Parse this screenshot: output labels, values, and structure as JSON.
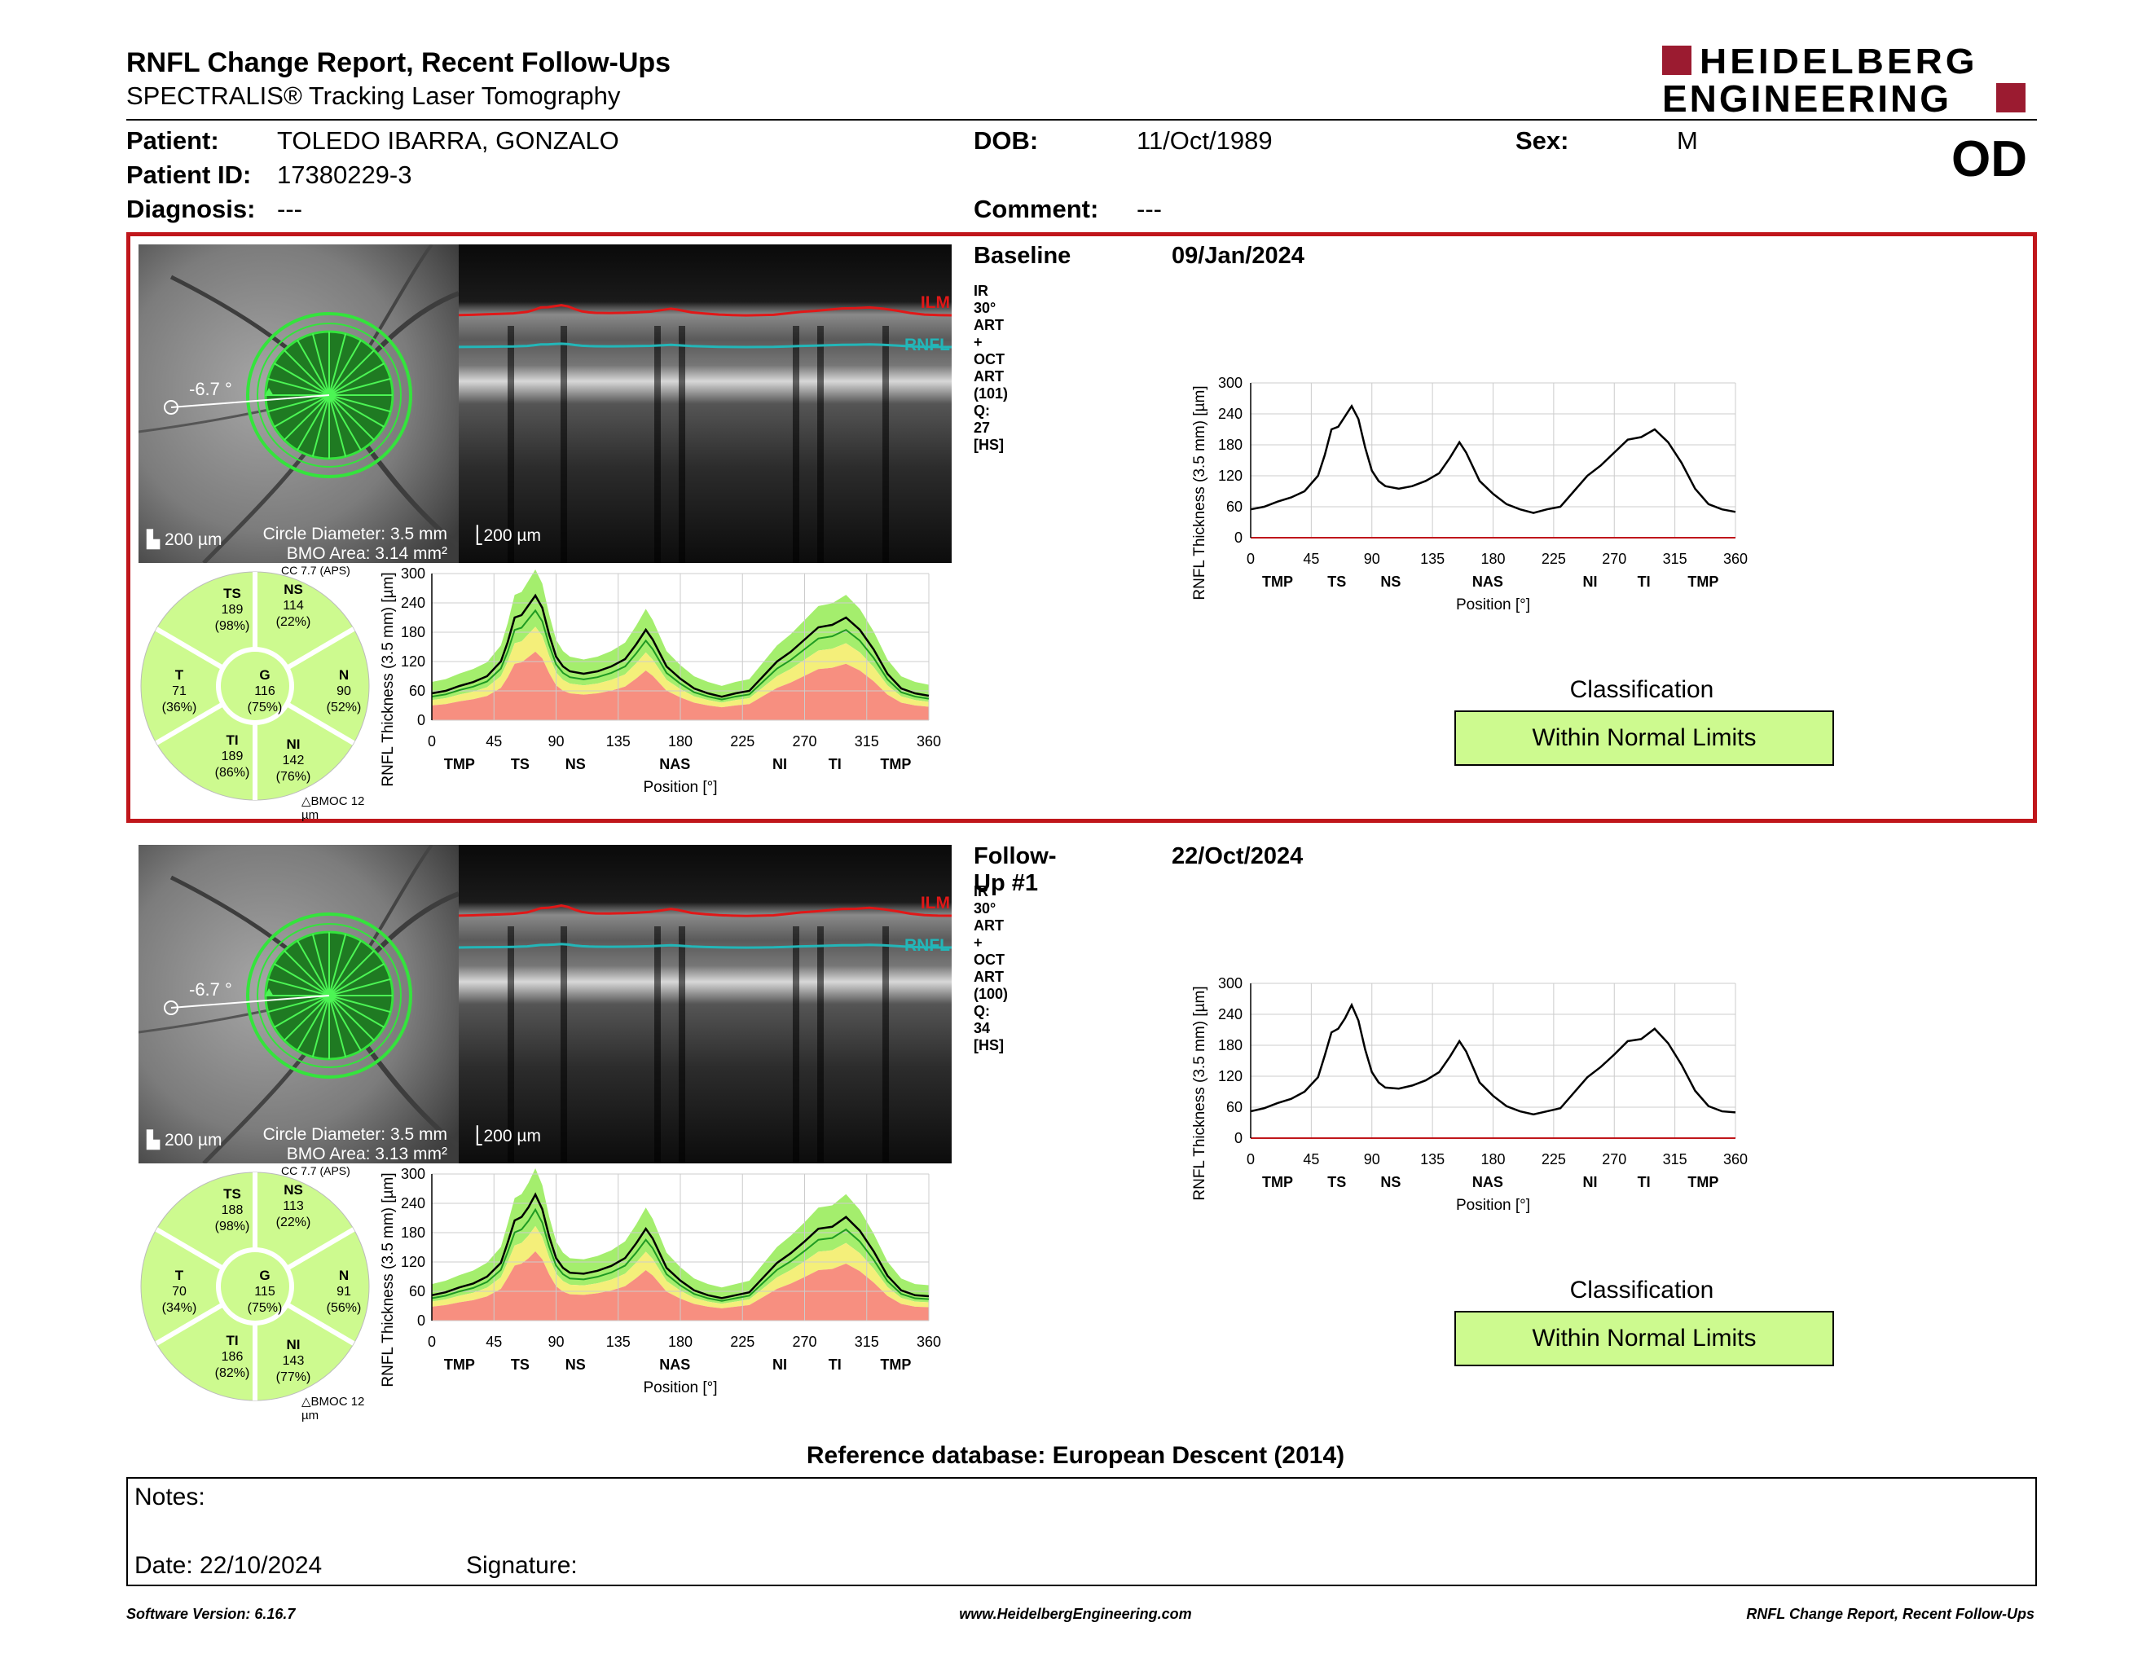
{
  "report": {
    "title": "RNFL Change Report, Recent Follow-Ups",
    "subtitle": "SPECTRALIS® Tracking Laser Tomography",
    "logo_line1": "HEIDELBERG",
    "logo_line2": "ENGINEERING",
    "eye": "OD"
  },
  "patient": {
    "patient_label": "Patient:",
    "name": "TOLEDO IBARRA, GONZALO",
    "id_label": "Patient ID:",
    "id": "17380229-3",
    "diagnosis_label": "Diagnosis:",
    "diagnosis": "---",
    "dob_label": "DOB:",
    "dob": "11/Oct/1989",
    "comment_label": "Comment:",
    "comment": "---",
    "sex_label": "Sex:",
    "sex": "M"
  },
  "exams": [
    {
      "label": "Baseline",
      "date": "09/Jan/2024",
      "scan_info": "IR 30° ART + OCT ART (101) Q: 27 [HS]",
      "angle": "-6.7 °",
      "scale_fundus": "200 µm",
      "circle_diameter": "Circle Diameter: 3.5 mm",
      "bmo_area": "BMO Area: 3.14 mm²",
      "scale_oct": "200 µm",
      "ilm": "ILM",
      "rnfl": "RNFL",
      "cc": "CC 7.7 (APS)",
      "bmoc": "BMOC 12 µm",
      "sectors": {
        "TS": {
          "label": "TS",
          "value": "189",
          "pct": "(98%)"
        },
        "NS": {
          "label": "NS",
          "value": "114",
          "pct": "(22%)"
        },
        "T": {
          "label": "T",
          "value": "71",
          "pct": "(36%)"
        },
        "G": {
          "label": "G",
          "value": "116",
          "pct": "(75%)"
        },
        "N": {
          "label": "N",
          "value": "90",
          "pct": "(52%)"
        },
        "TI": {
          "label": "TI",
          "value": "189",
          "pct": "(86%)"
        },
        "NI": {
          "label": "NI",
          "value": "142",
          "pct": "(76%)"
        }
      },
      "classification_label": "Classification",
      "classification": "Within Normal Limits"
    },
    {
      "label": "Follow-Up #1",
      "date": "22/Oct/2024",
      "scan_info": "IR 30° ART + OCT ART (100) Q: 34 [HS]",
      "angle": "-6.7 °",
      "scale_fundus": "200 µm",
      "circle_diameter": "Circle Diameter: 3.5 mm",
      "bmo_area": "BMO Area: 3.13 mm²",
      "scale_oct": "200 µm",
      "ilm": "ILM",
      "rnfl": "RNFL",
      "cc": "CC 7.7 (APS)",
      "bmoc": "BMOC 12 µm",
      "sectors": {
        "TS": {
          "label": "TS",
          "value": "188",
          "pct": "(98%)"
        },
        "NS": {
          "label": "NS",
          "value": "113",
          "pct": "(22%)"
        },
        "T": {
          "label": "T",
          "value": "70",
          "pct": "(34%)"
        },
        "G": {
          "label": "G",
          "value": "115",
          "pct": "(75%)"
        },
        "N": {
          "label": "N",
          "value": "91",
          "pct": "(56%)"
        },
        "TI": {
          "label": "TI",
          "value": "186",
          "pct": "(82%)"
        },
        "NI": {
          "label": "NI",
          "value": "143",
          "pct": "(77%)"
        }
      },
      "classification_label": "Classification",
      "classification": "Within Normal Limits"
    }
  ],
  "chart_data": [
    {
      "type": "line",
      "ylabel": "RNFL Thickness (3.5 mm) [µm]",
      "xlabel": "Position [°]",
      "xlim": [
        0,
        360
      ],
      "ylim": [
        0,
        300
      ],
      "x_ticks": [
        "0",
        "45",
        "90",
        "135",
        "180",
        "225",
        "270",
        "315",
        "360"
      ],
      "y_ticks": [
        "0",
        "60",
        "120",
        "180",
        "240",
        "300"
      ],
      "sector_labels": [
        "TMP",
        "TS",
        "NS",
        "NAS",
        "NI",
        "TI",
        "TMP"
      ],
      "sector_positions": [
        10,
        32,
        52,
        88,
        126,
        146,
        168
      ],
      "series": [
        {
          "color": "#000000",
          "x": [
            0,
            10,
            20,
            30,
            40,
            50,
            55,
            60,
            65,
            70,
            75,
            80,
            85,
            90,
            95,
            100,
            110,
            120,
            130,
            140,
            148,
            155,
            160,
            170,
            180,
            190,
            200,
            210,
            220,
            230,
            240,
            250,
            260,
            270,
            280,
            290,
            300,
            310,
            320,
            330,
            340,
            350,
            360
          ],
          "values": [
            55,
            60,
            70,
            78,
            90,
            120,
            160,
            210,
            215,
            235,
            255,
            230,
            175,
            130,
            110,
            100,
            95,
            100,
            110,
            125,
            155,
            185,
            165,
            110,
            85,
            65,
            55,
            48,
            55,
            60,
            90,
            120,
            140,
            165,
            190,
            195,
            210,
            185,
            145,
            95,
            65,
            55,
            50
          ]
        }
      ]
    },
    {
      "type": "line",
      "ylabel": "RNFL Thickness (3.5 mm) [µm]",
      "xlabel": "Position [°]",
      "xlim": [
        0,
        360
      ],
      "ylim": [
        0,
        300
      ],
      "x_ticks": [
        "0",
        "45",
        "90",
        "135",
        "180",
        "225",
        "270",
        "315",
        "360"
      ],
      "y_ticks": [
        "0",
        "60",
        "120",
        "180",
        "240",
        "300"
      ],
      "sector_labels": [
        "TMP",
        "TS",
        "NS",
        "NAS",
        "NI",
        "TI",
        "TMP"
      ],
      "sector_positions": [
        10,
        32,
        52,
        88,
        126,
        146,
        168
      ],
      "series": [
        {
          "color": "#000000",
          "x": [
            0,
            10,
            20,
            30,
            40,
            50,
            55,
            60,
            65,
            70,
            75,
            80,
            85,
            90,
            95,
            100,
            110,
            120,
            130,
            140,
            148,
            155,
            160,
            170,
            180,
            190,
            200,
            210,
            220,
            230,
            240,
            250,
            260,
            270,
            280,
            290,
            300,
            310,
            320,
            330,
            340,
            350,
            360
          ],
          "values": [
            52,
            58,
            68,
            76,
            90,
            118,
            160,
            205,
            212,
            232,
            258,
            228,
            172,
            128,
            108,
            98,
            96,
            102,
            112,
            128,
            158,
            188,
            168,
            108,
            82,
            62,
            52,
            46,
            52,
            58,
            88,
            118,
            138,
            162,
            188,
            192,
            212,
            184,
            142,
            92,
            62,
            52,
            50
          ]
        }
      ]
    }
  ],
  "reference": "Reference database: European Descent (2014)",
  "notes": {
    "notes_label": "Notes:",
    "date_label": "Date: 22/10/2024",
    "signature_label": "Signature:"
  },
  "footer": {
    "software": "Software Version: 6.16.7",
    "website": "www.HeidelbergEngineering.com",
    "report_name": "RNFL Change Report, Recent Follow-Ups"
  }
}
